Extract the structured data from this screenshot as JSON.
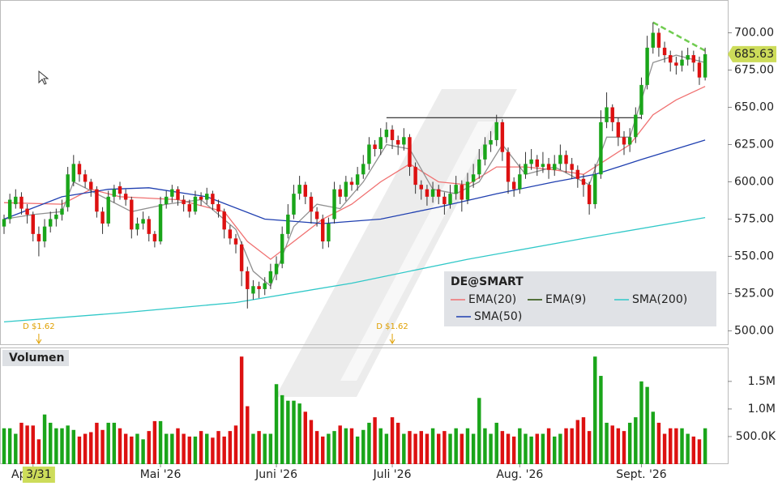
{
  "chart_data": {
    "type": "candlestick",
    "name": "DE@SMART",
    "up_color": "#1aa51a",
    "down_color": "#dd1111",
    "xlim": [
      -0.7,
      124.9
    ],
    "xticks": [
      {
        "value": 5,
        "label": "Apr. '26"
      },
      {
        "value": 27,
        "label": "Mai '26"
      },
      {
        "value": 47,
        "label": "Juni '26"
      },
      {
        "value": 67,
        "label": "Juli '26"
      },
      {
        "value": 89,
        "label": "Aug. '26"
      },
      {
        "value": 110,
        "label": "Sept. '26"
      }
    ],
    "ylim": [
      491,
      722
    ],
    "yticks": [
      {
        "value": 500,
        "label": "500.00"
      },
      {
        "value": 525,
        "label": "525.00"
      },
      {
        "value": 550,
        "label": "550.00"
      },
      {
        "value": 575,
        "label": "575.00"
      },
      {
        "value": 600,
        "label": "600.00"
      },
      {
        "value": 625,
        "label": "625.00"
      },
      {
        "value": 650,
        "label": "650.00"
      },
      {
        "value": 675,
        "label": "675.00"
      },
      {
        "value": 700,
        "label": "700.00"
      }
    ],
    "candles": [
      [
        570,
        578,
        565,
        575
      ],
      [
        575,
        592,
        572,
        588
      ],
      [
        585,
        595,
        582,
        590
      ],
      [
        590,
        593,
        578,
        582
      ],
      [
        582,
        585,
        572,
        578
      ],
      [
        578,
        580,
        560,
        565
      ],
      [
        565,
        570,
        550,
        560
      ],
      [
        560,
        575,
        556,
        570
      ],
      [
        570,
        580,
        566,
        575
      ],
      [
        575,
        582,
        570,
        578
      ],
      [
        578,
        588,
        574,
        582
      ],
      [
        583,
        610,
        580,
        605
      ],
      [
        600,
        618,
        597,
        612
      ],
      [
        612,
        614,
        600,
        605
      ],
      [
        605,
        608,
        596,
        600
      ],
      [
        600,
        602,
        590,
        595
      ],
      [
        595,
        597,
        576,
        580
      ],
      [
        580,
        583,
        565,
        572
      ],
      [
        572,
        594,
        570,
        590
      ],
      [
        590,
        598,
        586,
        595
      ],
      [
        597,
        600,
        588,
        592
      ],
      [
        592,
        595,
        584,
        588
      ],
      [
        588,
        590,
        562,
        568
      ],
      [
        568,
        576,
        564,
        572
      ],
      [
        572,
        580,
        568,
        575
      ],
      [
        575,
        577,
        560,
        565
      ],
      [
        565,
        567,
        556,
        560
      ],
      [
        560,
        590,
        558,
        585
      ],
      [
        585,
        594,
        582,
        590
      ],
      [
        590,
        598,
        586,
        595
      ],
      [
        595,
        597,
        584,
        588
      ],
      [
        588,
        591,
        580,
        585
      ],
      [
        585,
        588,
        576,
        580
      ],
      [
        580,
        594,
        578,
        590
      ],
      [
        590,
        593,
        584,
        588
      ],
      [
        588,
        596,
        585,
        592
      ],
      [
        592,
        594,
        581,
        585
      ],
      [
        585,
        588,
        576,
        580
      ],
      [
        580,
        582,
        562,
        568
      ],
      [
        568,
        571,
        558,
        562
      ],
      [
        562,
        565,
        552,
        558
      ],
      [
        558,
        560,
        530,
        540
      ],
      [
        540,
        543,
        515,
        528
      ],
      [
        525,
        534,
        521,
        530
      ],
      [
        530,
        533,
        522,
        528
      ],
      [
        528,
        536,
        524,
        532
      ],
      [
        532,
        545,
        528,
        540
      ],
      [
        538,
        550,
        534,
        545
      ],
      [
        545,
        570,
        542,
        565
      ],
      [
        565,
        585,
        562,
        578
      ],
      [
        578,
        598,
        575,
        592
      ],
      [
        592,
        604,
        588,
        598
      ],
      [
        598,
        600,
        585,
        590
      ],
      [
        590,
        593,
        572,
        580
      ],
      [
        580,
        583,
        570,
        575
      ],
      [
        575,
        578,
        555,
        560
      ],
      [
        560,
        576,
        556,
        572
      ],
      [
        575,
        600,
        572,
        595
      ],
      [
        595,
        598,
        585,
        590
      ],
      [
        590,
        604,
        587,
        600
      ],
      [
        600,
        603,
        594,
        598
      ],
      [
        598,
        610,
        594,
        605
      ],
      [
        605,
        618,
        602,
        612
      ],
      [
        612,
        630,
        608,
        625
      ],
      [
        625,
        628,
        617,
        622
      ],
      [
        622,
        636,
        618,
        630
      ],
      [
        630,
        640,
        626,
        635
      ],
      [
        635,
        638,
        622,
        628
      ],
      [
        628,
        631,
        618,
        625
      ],
      [
        625,
        636,
        621,
        630
      ],
      [
        630,
        632,
        604,
        610
      ],
      [
        610,
        613,
        592,
        598
      ],
      [
        598,
        601,
        588,
        595
      ],
      [
        595,
        598,
        584,
        590
      ],
      [
        590,
        600,
        586,
        595
      ],
      [
        595,
        598,
        585,
        590
      ],
      [
        590,
        593,
        578,
        585
      ],
      [
        585,
        598,
        582,
        592
      ],
      [
        592,
        604,
        588,
        598
      ],
      [
        598,
        601,
        580,
        588
      ],
      [
        588,
        606,
        585,
        600
      ],
      [
        600,
        612,
        596,
        605
      ],
      [
        605,
        622,
        602,
        615
      ],
      [
        615,
        630,
        611,
        625
      ],
      [
        625,
        634,
        620,
        628
      ],
      [
        628,
        645,
        624,
        640
      ],
      [
        640,
        642,
        614,
        620
      ],
      [
        620,
        623,
        592,
        600
      ],
      [
        600,
        603,
        590,
        595
      ],
      [
        595,
        612,
        592,
        605
      ],
      [
        605,
        620,
        602,
        612
      ],
      [
        612,
        622,
        608,
        615
      ],
      [
        615,
        618,
        604,
        610
      ],
      [
        610,
        620,
        606,
        612
      ],
      [
        612,
        616,
        602,
        608
      ],
      [
        608,
        618,
        604,
        612
      ],
      [
        612,
        625,
        608,
        618
      ],
      [
        618,
        621,
        606,
        612
      ],
      [
        612,
        616,
        602,
        608
      ],
      [
        608,
        611,
        596,
        602
      ],
      [
        602,
        605,
        590,
        598
      ],
      [
        598,
        600,
        578,
        585
      ],
      [
        585,
        612,
        582,
        605
      ],
      [
        605,
        648,
        602,
        640
      ],
      [
        640,
        660,
        636,
        650
      ],
      [
        650,
        652,
        634,
        640
      ],
      [
        640,
        643,
        624,
        630
      ],
      [
        630,
        634,
        618,
        625
      ],
      [
        625,
        636,
        620,
        630
      ],
      [
        630,
        650,
        626,
        645
      ],
      [
        645,
        670,
        642,
        665
      ],
      [
        665,
        698,
        662,
        690
      ],
      [
        690,
        707,
        686,
        700
      ],
      [
        700,
        703,
        684,
        690
      ],
      [
        690,
        694,
        680,
        685
      ],
      [
        685,
        688,
        674,
        680
      ],
      [
        680,
        684,
        672,
        678
      ],
      [
        678,
        688,
        674,
        682
      ],
      [
        682,
        690,
        678,
        685
      ],
      [
        685,
        688,
        674,
        680
      ],
      [
        680,
        684,
        665,
        670
      ],
      [
        670,
        690,
        668,
        685.63
      ]
    ],
    "volume_label": "Volumen",
    "vlim": [
      0,
      2100000
    ],
    "vticks": [
      {
        "value": 500000,
        "label": "500.0K"
      },
      {
        "value": 1000000,
        "label": "1.0M"
      },
      {
        "value": 1500000,
        "label": "1.5M"
      }
    ],
    "volumes": [
      650000,
      650000,
      550000,
      750000,
      700000,
      700000,
      450000,
      900000,
      750000,
      650000,
      650000,
      700000,
      620000,
      500000,
      550000,
      580000,
      750000,
      620000,
      750000,
      750000,
      650000,
      550000,
      500000,
      550000,
      450000,
      600000,
      780000,
      780000,
      550000,
      550000,
      650000,
      550000,
      500000,
      500000,
      600000,
      550000,
      480000,
      600000,
      500000,
      600000,
      700000,
      1950000,
      1050000,
      550000,
      600000,
      550000,
      550000,
      1450000,
      1250000,
      1150000,
      1150000,
      1100000,
      950000,
      800000,
      600000,
      500000,
      550000,
      600000,
      700000,
      650000,
      650000,
      500000,
      620000,
      750000,
      850000,
      650000,
      550000,
      850000,
      750000,
      550000,
      600000,
      550000,
      600000,
      550000,
      650000,
      550000,
      600000,
      550000,
      650000,
      550000,
      650000,
      550000,
      1200000,
      650000,
      550000,
      750000,
      600000,
      550000,
      500000,
      650000,
      550000,
      500000,
      550000,
      550000,
      650000,
      500000,
      550000,
      650000,
      650000,
      800000,
      850000,
      600000,
      1950000,
      1600000,
      750000,
      700000,
      650000,
      600000,
      750000,
      850000,
      1500000,
      1400000,
      950000,
      750000,
      550000,
      650000,
      650000,
      650000,
      550000,
      500000,
      450000,
      650000
    ],
    "indicators": [
      {
        "name": "EMA(20)",
        "color": "#f07070",
        "x": [
          0,
          10,
          15,
          20,
          30,
          38,
          42,
          46,
          50,
          55,
          60,
          65,
          70,
          75,
          80,
          85,
          90,
          95,
          100,
          104,
          108,
          112,
          116,
          121
        ],
        "values": [
          586,
          585,
          595,
          590,
          588,
          580,
          560,
          548,
          560,
          575,
          585,
          600,
          612,
          600,
          598,
          610,
          610,
          608,
          605,
          615,
          625,
          645,
          655,
          664
        ]
      },
      {
        "name": "EMA(9)",
        "color": "#909090",
        "x": [
          0,
          5,
          10,
          12,
          17,
          22,
          28,
          34,
          40,
          43,
          46,
          50,
          54,
          58,
          62,
          66,
          70,
          74,
          78,
          82,
          86,
          90,
          95,
          101,
          104,
          108,
          112,
          116,
          121
        ],
        "values": [
          575,
          578,
          580,
          600,
          590,
          580,
          585,
          588,
          568,
          540,
          530,
          570,
          585,
          582,
          600,
          625,
          622,
          595,
          592,
          600,
          625,
          605,
          610,
          598,
          630,
          630,
          680,
          685,
          680
        ]
      },
      {
        "name": "SMA(200)",
        "color": "#30c8c8",
        "x": [
          0,
          20,
          40,
          60,
          80,
          100,
          121
        ],
        "values": [
          506,
          512,
          519,
          532,
          548,
          562,
          576
        ]
      },
      {
        "name": "SMA(50)",
        "color": "#1f3fb0",
        "x": [
          0,
          10,
          18,
          25,
          35,
          45,
          55,
          65,
          75,
          85,
          95,
          102,
          110,
          121
        ],
        "values": [
          575,
          590,
          595,
          596,
          590,
          575,
          572,
          575,
          583,
          592,
          600,
          605,
          615,
          628
        ]
      }
    ],
    "legend_icon_color": "#224a00",
    "trendline": {
      "color": "#70cc50",
      "x": [
        112,
        121
      ],
      "values": [
        707,
        688
      ]
    },
    "level": {
      "color": "#222222",
      "x": [
        66,
        110
      ],
      "values": [
        643,
        643
      ]
    },
    "dividends": [
      {
        "x": 6,
        "label": "D $1.62"
      },
      {
        "x": 67,
        "label": "D $1.62"
      }
    ],
    "crosshair": {
      "x": 6,
      "label": "3/31"
    },
    "last_price_color": "#cddc5a"
  }
}
